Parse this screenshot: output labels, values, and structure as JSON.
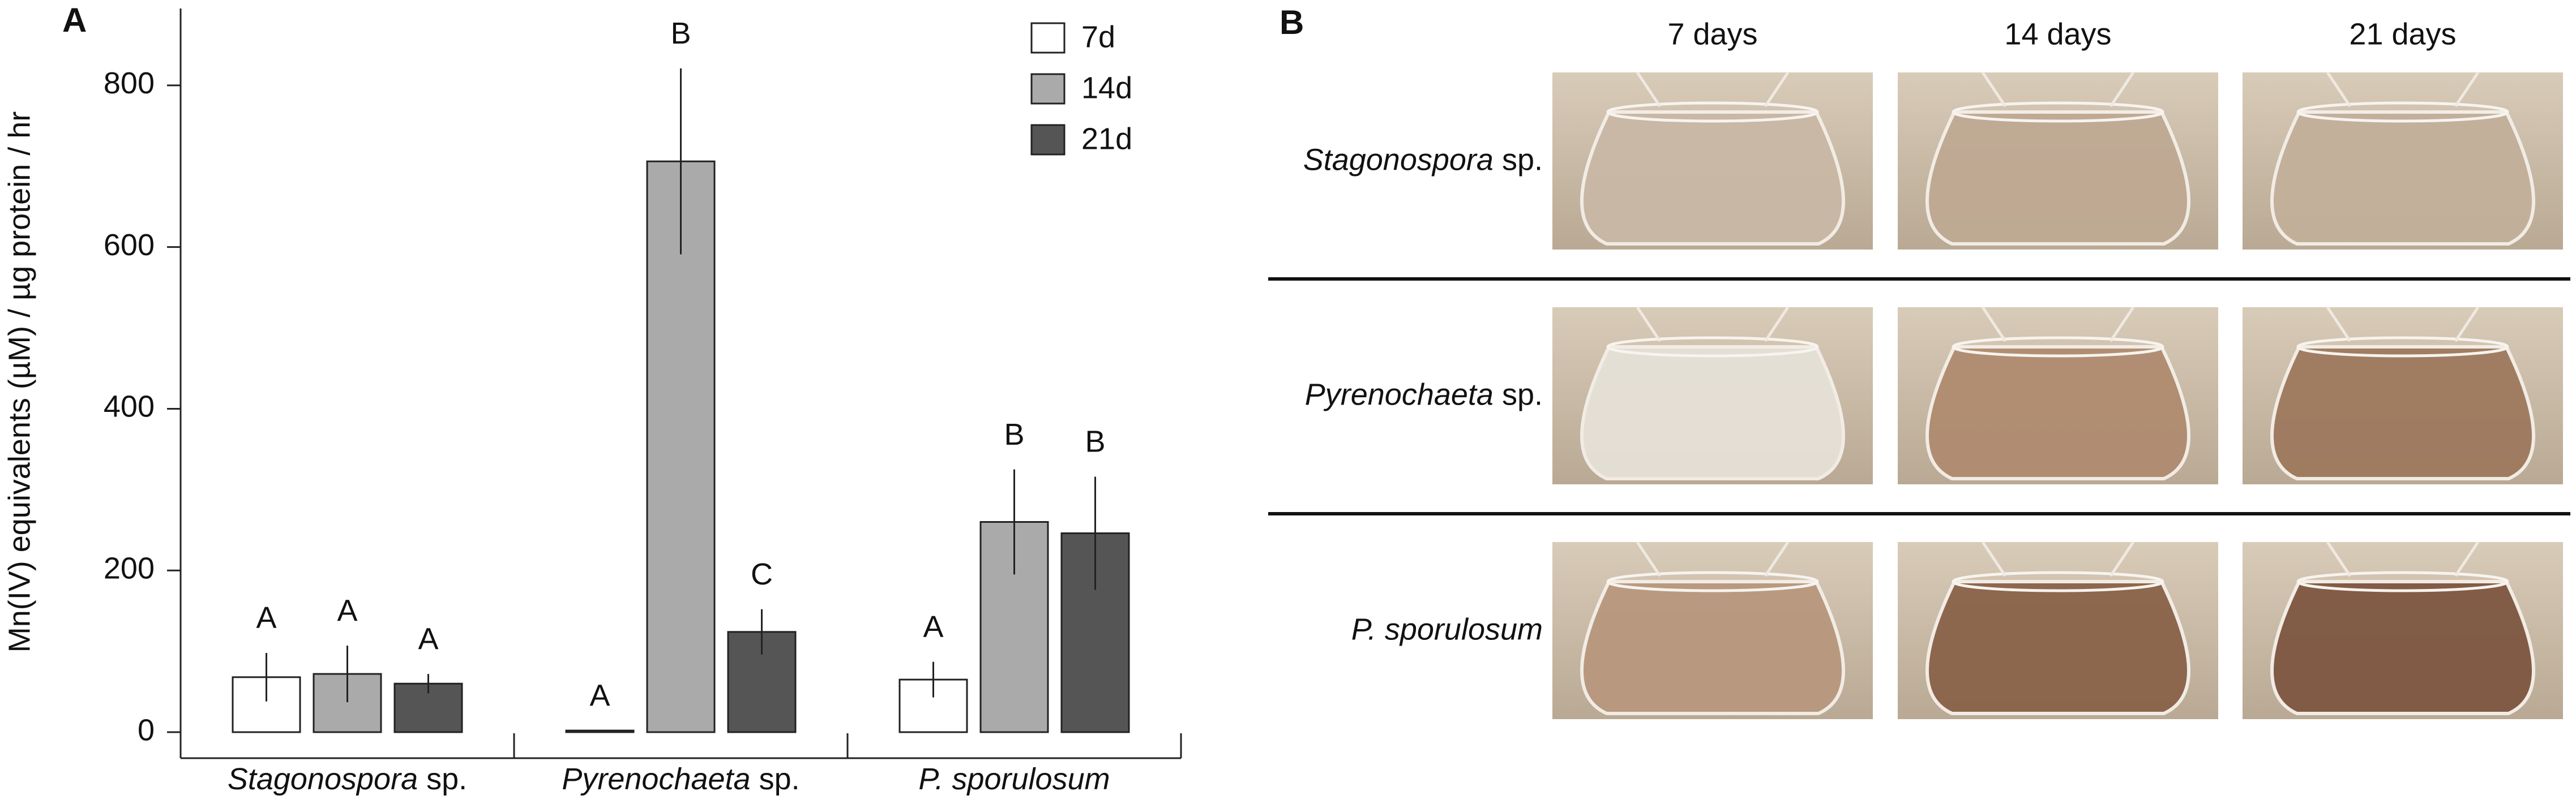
{
  "chart_data": {
    "type": "bar",
    "panel_label": "A",
    "ylabel": "Mn(IV) equivalents (µM) / µg protein / hr",
    "categories": [
      "Stagonospora sp.",
      "Pyrenochaeta sp.",
      "P. sporulosum"
    ],
    "series": [
      {
        "name": "7d",
        "color": "#ffffff",
        "values": [
          68,
          2,
          65
        ],
        "errors": [
          30,
          0,
          22
        ],
        "letters": [
          "A",
          "A",
          "A"
        ]
      },
      {
        "name": "14d",
        "color": "#aaaaaa",
        "values": [
          72,
          706,
          260
        ],
        "errors": [
          35,
          115,
          65
        ],
        "letters": [
          "A",
          "B",
          "B"
        ]
      },
      {
        "name": "21d",
        "color": "#555555",
        "values": [
          60,
          124,
          246
        ],
        "errors": [
          12,
          28,
          70
        ],
        "letters": [
          "A",
          "C",
          "B"
        ]
      }
    ],
    "ylim": [
      0,
      900
    ],
    "yticks": [
      0,
      200,
      400,
      600,
      800
    ],
    "grid": false,
    "legend": "upper right"
  },
  "photo_panel": {
    "panel_label": "B",
    "columns": [
      "7 days",
      "14 days",
      "21 days"
    ],
    "rows": [
      "Stagonospora sp.",
      "Pyrenochaeta sp.",
      "P. sporulosum"
    ]
  }
}
